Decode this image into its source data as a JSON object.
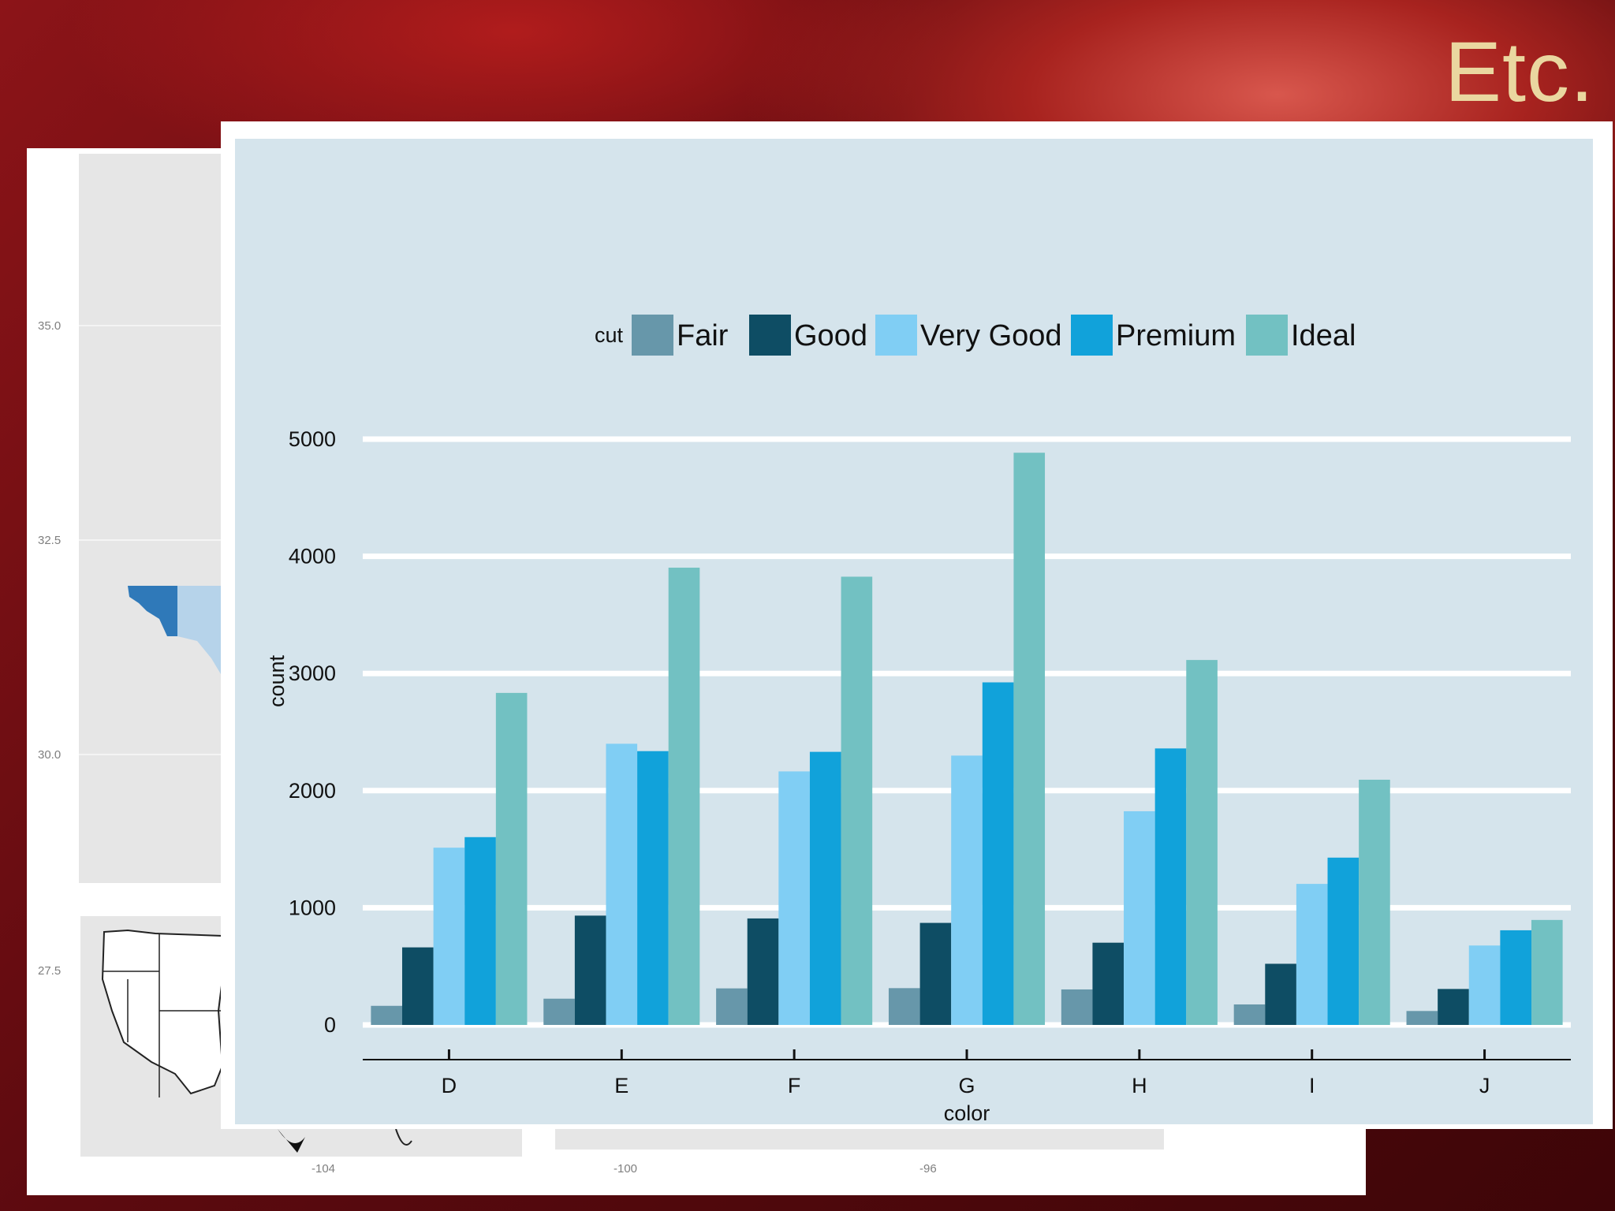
{
  "slide": {
    "title": "Etc."
  },
  "background_map": {
    "y_ticks": [
      "35.0",
      "32.5",
      "30.0",
      "27.5"
    ],
    "x_ticks": [
      "-104",
      "-100",
      "-96"
    ],
    "colors": {
      "panel": "#e6e6e6",
      "region_dark": "#2f79b9",
      "region_light": "#b6d3ea"
    }
  },
  "chart_data": {
    "type": "bar",
    "title": "",
    "xlabel": "color",
    "ylabel": "count",
    "ylim": [
      0,
      5000
    ],
    "yticks": [
      0,
      1000,
      2000,
      3000,
      4000,
      5000
    ],
    "ytick_labels": [
      "0",
      "1000",
      "2000",
      "3000",
      "4000",
      "5000"
    ],
    "legend_title": "cut",
    "legend_position": "top",
    "grid": true,
    "categories": [
      "D",
      "E",
      "F",
      "G",
      "H",
      "I",
      "J"
    ],
    "series": [
      {
        "name": "Fair",
        "color": "#6797aa",
        "values": [
          163,
          224,
          312,
          314,
          303,
          175,
          119
        ]
      },
      {
        "name": "Good",
        "color": "#0e4d64",
        "values": [
          662,
          933,
          909,
          871,
          702,
          522,
          307
        ]
      },
      {
        "name": "Very Good",
        "color": "#80cef4",
        "values": [
          1513,
          2400,
          2164,
          2299,
          1824,
          1204,
          678
        ]
      },
      {
        "name": "Premium",
        "color": "#11a2da",
        "values": [
          1603,
          2337,
          2331,
          2924,
          2360,
          1428,
          808
        ]
      },
      {
        "name": "Ideal",
        "color": "#72c1c2",
        "values": [
          2834,
          3903,
          3826,
          4884,
          3115,
          2093,
          896
        ]
      }
    ]
  }
}
